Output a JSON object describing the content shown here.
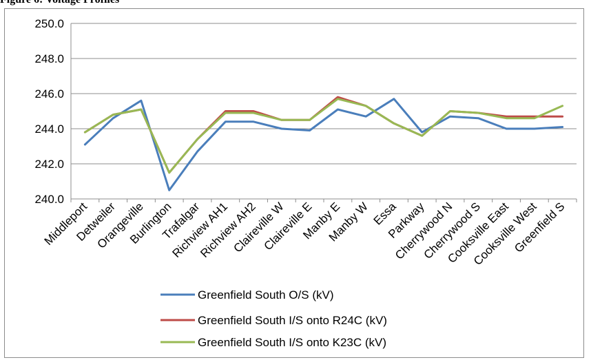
{
  "caption": "Figure 6: Voltage Profiles",
  "chart_data": {
    "type": "line",
    "categories": [
      "Middleport",
      "Detweiler",
      "Orangeville",
      "Burlington",
      "Trafalgar",
      "Richview AH1",
      "Richview AH2",
      "Claireville W",
      "Claireville E",
      "Manby E",
      "Manby W",
      "Essa",
      "Parkway",
      "Cherrywood N",
      "Cherrywood S",
      "Cooksville East",
      "Cooksville West",
      "Greenfield S"
    ],
    "ylim": [
      240.0,
      250.0
    ],
    "yticks": [
      "240.0",
      "242.0",
      "244.0",
      "246.0",
      "248.0",
      "250.0"
    ],
    "grid": true,
    "legend_position": "bottom",
    "series": [
      {
        "name": "Greenfield South O/S (kV)",
        "color": "#4a7ebb",
        "values": [
          243.1,
          244.6,
          245.6,
          240.5,
          242.7,
          244.4,
          244.4,
          244.0,
          243.9,
          245.1,
          244.7,
          245.7,
          243.8,
          244.7,
          244.6,
          244.0,
          244.0,
          244.1
        ]
      },
      {
        "name": "Greenfield South I/S onto R24C (kV)",
        "color": "#be4b48",
        "values": [
          243.8,
          244.8,
          245.1,
          241.5,
          243.4,
          245.0,
          245.0,
          244.5,
          244.5,
          245.8,
          245.3,
          244.3,
          243.6,
          245.0,
          244.9,
          244.7,
          244.7,
          244.7
        ]
      },
      {
        "name": "Greenfield South I/S onto K23C (kV)",
        "color": "#98b954",
        "values": [
          243.8,
          244.8,
          245.1,
          241.5,
          243.4,
          244.9,
          244.9,
          244.5,
          244.5,
          245.7,
          245.3,
          244.3,
          243.6,
          245.0,
          244.9,
          244.6,
          244.6,
          245.3
        ]
      }
    ]
  }
}
